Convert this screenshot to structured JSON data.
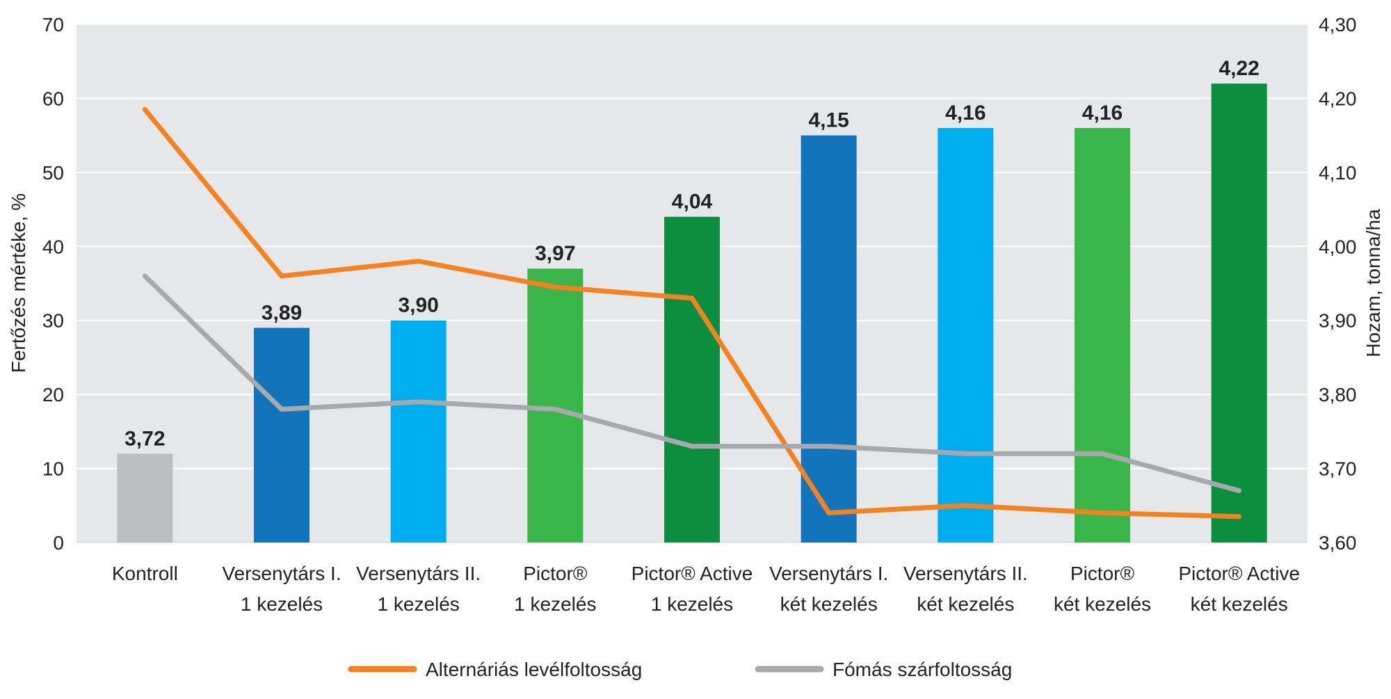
{
  "chart_data": {
    "type": "bar",
    "categories": [
      [
        "Kontroll"
      ],
      [
        "Versenytárs I.",
        "1 kezelés"
      ],
      [
        "Versenytárs II.",
        "1 kezelés"
      ],
      [
        "Pictor®",
        "1 kezelés"
      ],
      [
        "Pictor® Active",
        "1 kezelés"
      ],
      [
        "Versenytárs I.",
        "két kezelés"
      ],
      [
        "Versenytárs II.",
        "két kezelés"
      ],
      [
        "Pictor®",
        "két kezelés"
      ],
      [
        "Pictor® Active",
        "két kezelés"
      ]
    ],
    "bars": {
      "axis": "right",
      "values": [
        3.72,
        3.89,
        3.9,
        3.97,
        4.04,
        4.15,
        4.16,
        4.16,
        4.22
      ],
      "labels": [
        "3,72",
        "3,89",
        "3,90",
        "3,97",
        "4,04",
        "4,15",
        "4,16",
        "4,16",
        "4,22"
      ],
      "colors": [
        "#bcbec0",
        "#1275bc",
        "#00adee",
        "#39b54a",
        "#0b8f3f",
        "#1275bc",
        "#00adee",
        "#39b54a",
        "#0b8f3f"
      ]
    },
    "series": [
      {
        "name": "Alternáriás levélfoltosság",
        "type": "line",
        "axis": "left",
        "color": "#f58220",
        "values": [
          58.5,
          36,
          38,
          34.5,
          33,
          4,
          5,
          4,
          3.5
        ]
      },
      {
        "name": "Fómás szárfoltosság",
        "type": "line",
        "axis": "left",
        "color": "#a7a9ac",
        "values": [
          36,
          18,
          19,
          18,
          13,
          13,
          12,
          12,
          7
        ]
      }
    ],
    "left_axis": {
      "label": "Fertőzés mértéke, %",
      "ylim": [
        0,
        70
      ],
      "ticks": [
        0,
        10,
        20,
        30,
        40,
        50,
        60,
        70
      ],
      "tick_labels": [
        "0",
        "10",
        "20",
        "30",
        "40",
        "50",
        "60",
        "70"
      ]
    },
    "right_axis": {
      "label": "Hozam, tonna/ha",
      "ylim": [
        3.6,
        4.3
      ],
      "ticks": [
        3.6,
        3.7,
        3.8,
        3.9,
        4.0,
        4.1,
        4.2,
        4.3
      ],
      "tick_labels": [
        "3,60",
        "3,70",
        "3,80",
        "3,90",
        "4,00",
        "4,10",
        "4,20",
        "4,30"
      ]
    },
    "grid": true,
    "plot_background": "#e6e7e8",
    "legend_position": "bottom-center"
  }
}
